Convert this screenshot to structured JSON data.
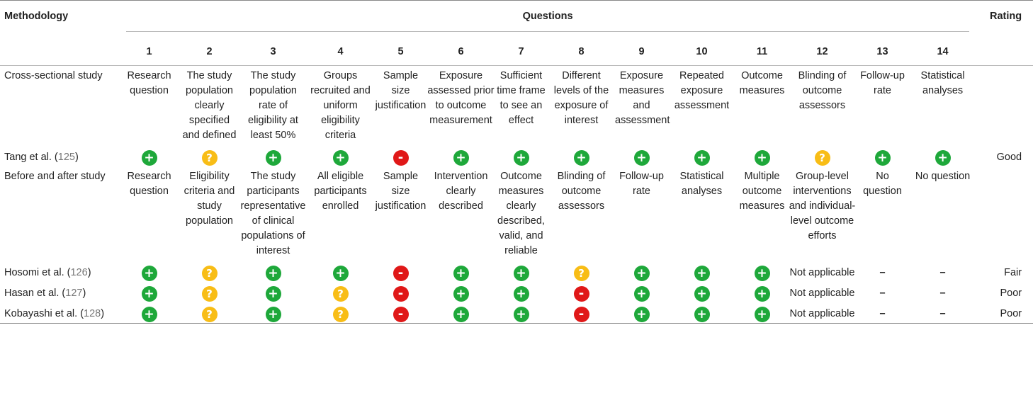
{
  "headers": {
    "methodology": "Methodology",
    "questions": "Questions",
    "rating": "Rating",
    "numbers": [
      "1",
      "2",
      "3",
      "4",
      "5",
      "6",
      "7",
      "8",
      "9",
      "10",
      "11",
      "12",
      "13",
      "14"
    ]
  },
  "sections": [
    {
      "label": "Cross-sectional study",
      "questions": [
        "Research question",
        "The study population clearly specified and defined",
        "The study population rate of eligibility at least 50%",
        "Groups recruited and uniform eligibility criteria",
        "Sample size justification",
        "Exposure assessed prior to outcome measurement",
        "Sufficient time frame to see an effect",
        "Different levels of the exposure of interest",
        "Exposure measures and assessment",
        "Repeated exposure assessment",
        "Outcome measures",
        "Blinding of outcome assessors",
        "Follow-up rate",
        "Statistical analyses"
      ],
      "studies": [
        {
          "name": "Tang et al. (",
          "ref": "125",
          "close": ")",
          "ratings": [
            "plus",
            "question",
            "plus",
            "plus",
            "minus",
            "plus",
            "plus",
            "plus",
            "plus",
            "plus",
            "plus",
            "question",
            "plus",
            "plus"
          ],
          "rating": "Good"
        }
      ]
    },
    {
      "label": "Before and after study",
      "questions": [
        "Research question",
        "Eligibility criteria and study population",
        "The study participants representative of clinical populations of interest",
        "All eligible participants enrolled",
        "Sample size justification",
        "Intervention clearly described",
        "Outcome measures clearly described, valid, and reliable",
        "Blinding of outcome assessors",
        "Follow-up rate",
        "Statistical analyses",
        "Multiple outcome measures",
        "Group-level interventions and individual-level outcome efforts",
        "No question",
        "No question"
      ],
      "studies": [
        {
          "name": "Hosomi et al. (",
          "ref": "126",
          "close": ")",
          "ratings": [
            "plus",
            "question",
            "plus",
            "plus",
            "minus",
            "plus",
            "plus",
            "question",
            "plus",
            "plus",
            "plus",
            "Not applicable",
            "–",
            "–"
          ],
          "rating": "Fair"
        },
        {
          "name": "Hasan et al. (",
          "ref": "127",
          "close": ")",
          "ratings": [
            "plus",
            "question",
            "plus",
            "question",
            "minus",
            "plus",
            "plus",
            "minus",
            "plus",
            "plus",
            "plus",
            "Not applicable",
            "–",
            "–"
          ],
          "rating": "Poor"
        },
        {
          "name": "Kobayashi et al. (",
          "ref": "128",
          "close": ")",
          "ratings": [
            "plus",
            "question",
            "plus",
            "question",
            "minus",
            "plus",
            "plus",
            "minus",
            "plus",
            "plus",
            "plus",
            "Not applicable",
            "–",
            "–"
          ],
          "rating": "Poor"
        }
      ]
    }
  ],
  "symbols": {
    "plus": "+",
    "minus": "-",
    "question": "?"
  },
  "colors": {
    "plus": "#1ea83a",
    "minus": "#e01818",
    "question": "#f8bd16"
  }
}
